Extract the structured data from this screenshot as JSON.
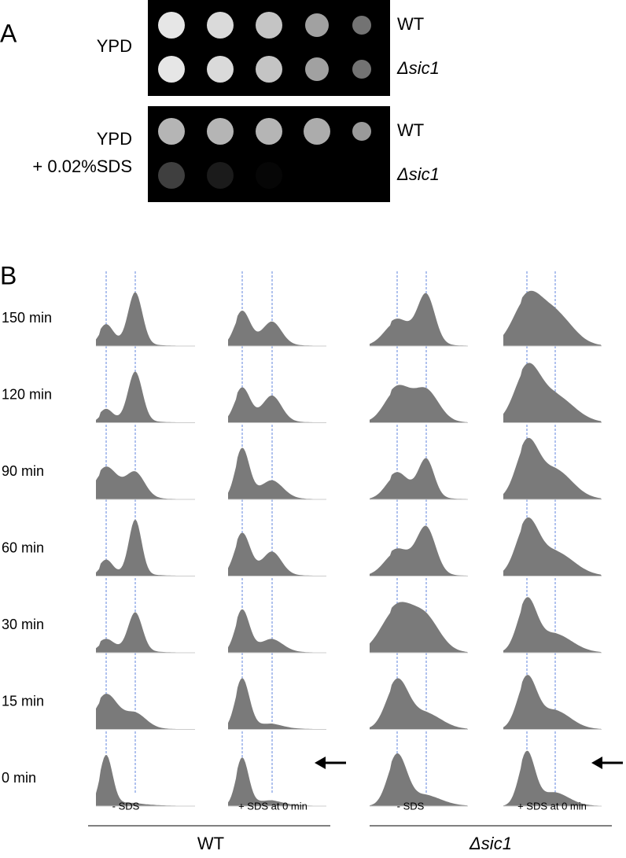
{
  "panel_a": {
    "label": "A",
    "plates": [
      {
        "condition": [
          "YPD"
        ],
        "strains": [
          "WT",
          "Δsic1"
        ]
      },
      {
        "condition": [
          "YPD",
          "+ 0.02%SDS"
        ],
        "strains": [
          "WT",
          "Δsic1"
        ]
      }
    ]
  },
  "panel_b": {
    "label": "B",
    "timepoints": [
      "150 min",
      "120 min",
      "90 min",
      "60 min",
      "30 min",
      "15 min",
      "0 min"
    ],
    "groups": [
      {
        "name": "WT",
        "conditions": [
          "- SDS",
          "+ SDS at 0 min"
        ]
      },
      {
        "name": "Δsic1",
        "conditions": [
          "- SDS",
          "+ SDS at 0 min"
        ]
      }
    ]
  }
}
